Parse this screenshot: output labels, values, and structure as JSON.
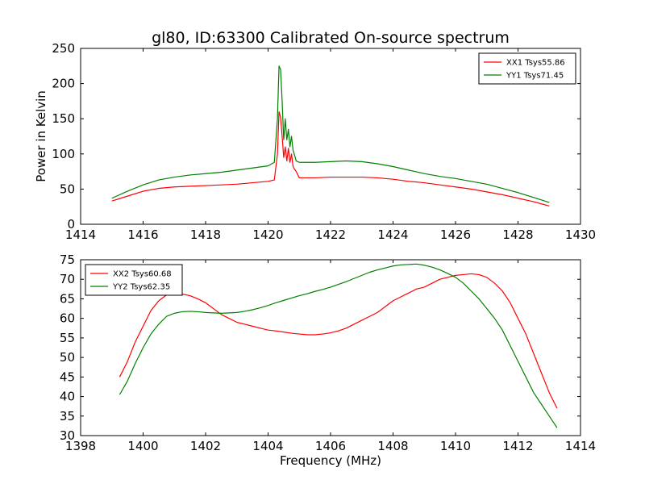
{
  "figure": {
    "title": "gl80, ID:63300 Calibrated On-source spectrum"
  },
  "chart_data": [
    {
      "type": "line",
      "title": "gl80, ID:63300 Calibrated On-source spectrum",
      "xlabel": "",
      "ylabel": "Power in Kelvin",
      "xlim": [
        1414,
        1430
      ],
      "ylim": [
        0,
        250
      ],
      "xticks": [
        1414,
        1416,
        1418,
        1420,
        1422,
        1424,
        1426,
        1428,
        1430
      ],
      "yticks": [
        0,
        50,
        100,
        150,
        200,
        250
      ],
      "grid": false,
      "legend_position": "top-right",
      "series": [
        {
          "name": "XX1 Tsys55.86",
          "color": "#ff0000",
          "x": [
            1415.0,
            1415.5,
            1416.0,
            1416.5,
            1417.0,
            1417.5,
            1418.0,
            1418.5,
            1419.0,
            1419.5,
            1420.0,
            1420.2,
            1420.3,
            1420.35,
            1420.4,
            1420.45,
            1420.5,
            1420.55,
            1420.6,
            1420.65,
            1420.7,
            1420.75,
            1420.8,
            1420.85,
            1420.9,
            1421.0,
            1421.5,
            1422.0,
            1422.5,
            1423.0,
            1423.5,
            1424.0,
            1424.5,
            1425.0,
            1425.5,
            1426.0,
            1426.5,
            1427.0,
            1427.5,
            1428.0,
            1428.5,
            1429.0
          ],
          "values": [
            33,
            40,
            47,
            51,
            53,
            54,
            55,
            56,
            57,
            59,
            61,
            63,
            100,
            160,
            152,
            125,
            95,
            110,
            90,
            108,
            88,
            100,
            82,
            78,
            75,
            66,
            66,
            67,
            67,
            67,
            66,
            64,
            61,
            59,
            56,
            53,
            50,
            46,
            42,
            37,
            32,
            26
          ]
        },
        {
          "name": "YY1 Tsys71.45",
          "color": "#008000",
          "x": [
            1415.0,
            1415.5,
            1416.0,
            1416.5,
            1417.0,
            1417.5,
            1418.0,
            1418.5,
            1419.0,
            1419.5,
            1420.0,
            1420.2,
            1420.3,
            1420.35,
            1420.4,
            1420.45,
            1420.5,
            1420.55,
            1420.6,
            1420.65,
            1420.7,
            1420.75,
            1420.8,
            1420.85,
            1420.9,
            1421.0,
            1421.5,
            1422.0,
            1422.5,
            1423.0,
            1423.5,
            1424.0,
            1424.5,
            1425.0,
            1425.5,
            1426.0,
            1426.5,
            1427.0,
            1427.5,
            1428.0,
            1428.5,
            1429.0
          ],
          "values": [
            37,
            47,
            56,
            63,
            67,
            70,
            72,
            74,
            77,
            80,
            83,
            88,
            150,
            225,
            220,
            175,
            120,
            150,
            120,
            135,
            110,
            125,
            105,
            98,
            90,
            88,
            88,
            89,
            90,
            89,
            86,
            82,
            77,
            72,
            68,
            65,
            61,
            57,
            51,
            45,
            38,
            31
          ]
        }
      ]
    },
    {
      "type": "line",
      "title": "",
      "xlabel": "Frequency (MHz)",
      "ylabel": "",
      "xlim": [
        1398,
        1414
      ],
      "ylim": [
        30,
        75
      ],
      "xticks": [
        1398,
        1400,
        1402,
        1404,
        1406,
        1408,
        1410,
        1412,
        1414
      ],
      "yticks": [
        30,
        35,
        40,
        45,
        50,
        55,
        60,
        65,
        70,
        75
      ],
      "grid": false,
      "legend_position": "top-left",
      "series": [
        {
          "name": "XX2 Tsys60.68",
          "color": "#ff0000",
          "x": [
            1399.25,
            1399.5,
            1399.75,
            1400.0,
            1400.25,
            1400.5,
            1400.75,
            1401.0,
            1401.25,
            1401.5,
            1401.75,
            1402.0,
            1402.25,
            1402.5,
            1402.75,
            1403.0,
            1403.25,
            1403.5,
            1403.75,
            1404.0,
            1404.25,
            1404.5,
            1404.75,
            1405.0,
            1405.25,
            1405.5,
            1405.75,
            1406.0,
            1406.25,
            1406.5,
            1406.75,
            1407.0,
            1407.25,
            1407.5,
            1407.75,
            1408.0,
            1408.25,
            1408.5,
            1408.75,
            1409.0,
            1409.25,
            1409.5,
            1409.75,
            1410.0,
            1410.25,
            1410.5,
            1410.75,
            1411.0,
            1411.25,
            1411.5,
            1411.75,
            1412.0,
            1412.25,
            1412.5,
            1412.75,
            1413.0,
            1413.25
          ],
          "values": [
            45,
            49,
            54,
            58,
            62,
            64.5,
            66,
            66.3,
            66.2,
            65.8,
            65,
            64,
            62.5,
            61,
            60,
            59,
            58.5,
            58,
            57.5,
            57,
            56.8,
            56.5,
            56.2,
            56,
            55.8,
            55.8,
            56,
            56.3,
            56.8,
            57.5,
            58.5,
            59.5,
            60.5,
            61.5,
            63,
            64.5,
            65.5,
            66.5,
            67.5,
            68,
            69,
            70,
            70.5,
            71,
            71.2,
            71.4,
            71.2,
            70.5,
            69,
            67,
            64,
            60,
            56,
            51,
            46,
            41,
            37
          ]
        },
        {
          "name": "YY2 Tsys62.35",
          "color": "#008000",
          "x": [
            1399.25,
            1399.5,
            1399.75,
            1400.0,
            1400.25,
            1400.5,
            1400.75,
            1401.0,
            1401.25,
            1401.5,
            1401.75,
            1402.0,
            1402.25,
            1402.5,
            1402.75,
            1403.0,
            1403.25,
            1403.5,
            1403.75,
            1404.0,
            1404.25,
            1404.5,
            1404.75,
            1405.0,
            1405.25,
            1405.5,
            1405.75,
            1406.0,
            1406.25,
            1406.5,
            1406.75,
            1407.0,
            1407.25,
            1407.5,
            1407.75,
            1408.0,
            1408.25,
            1408.5,
            1408.75,
            1409.0,
            1409.25,
            1409.5,
            1409.75,
            1410.0,
            1410.25,
            1410.5,
            1410.75,
            1411.0,
            1411.25,
            1411.5,
            1411.75,
            1412.0,
            1412.25,
            1412.5,
            1412.75,
            1413.0,
            1413.25
          ],
          "values": [
            40.5,
            44,
            48.5,
            52.5,
            56,
            58.5,
            60.5,
            61.3,
            61.7,
            61.8,
            61.7,
            61.5,
            61.4,
            61.3,
            61.4,
            61.5,
            61.8,
            62.2,
            62.7,
            63.3,
            64,
            64.6,
            65.2,
            65.8,
            66.3,
            66.9,
            67.4,
            68,
            68.7,
            69.4,
            70.2,
            71,
            71.8,
            72.4,
            72.9,
            73.4,
            73.7,
            73.8,
            73.9,
            73.6,
            73.1,
            72.4,
            71.5,
            70.5,
            69,
            67,
            65,
            62.5,
            60,
            57,
            53,
            49,
            45,
            41,
            38,
            35,
            32
          ]
        }
      ]
    }
  ]
}
